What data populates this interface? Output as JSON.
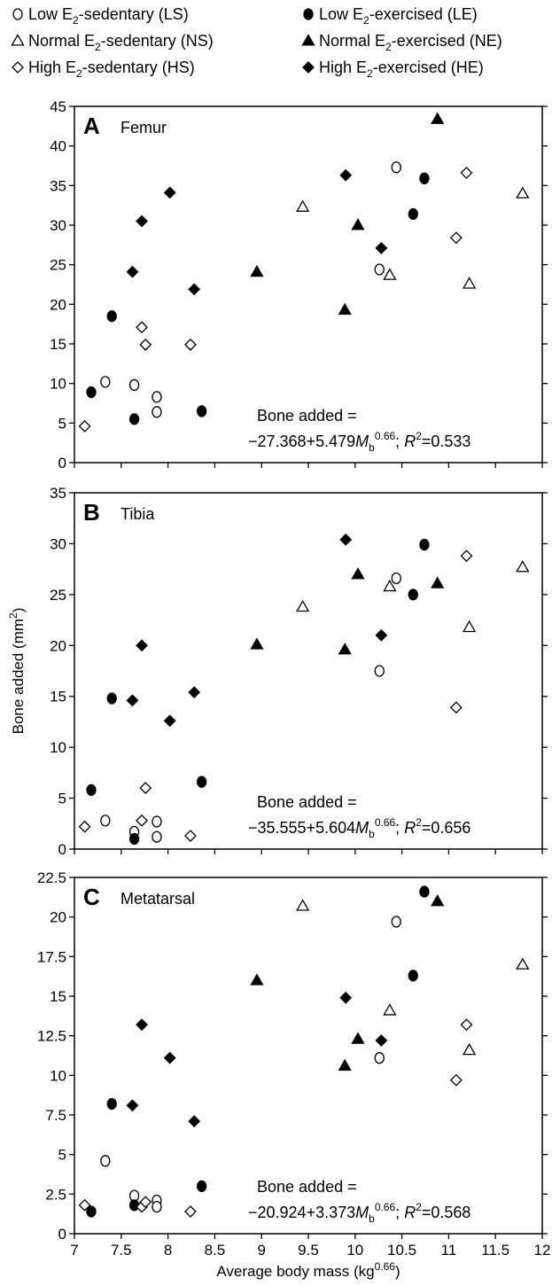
{
  "legend": {
    "entries": [
      {
        "label": "Low E",
        "sub": "2",
        "rest": "-sedentary (LS)",
        "marker": "open-circle"
      },
      {
        "label": "Low E",
        "sub": "2",
        "rest": "-exercised (LE)",
        "marker": "filled-circle"
      },
      {
        "label": "Normal E",
        "sub": "2",
        "rest": "-sedentary (NS)",
        "marker": "open-triangle"
      },
      {
        "label": "Normal E",
        "sub": "2",
        "rest": "-exercised (NE)",
        "marker": "filled-triangle"
      },
      {
        "label": "High E",
        "sub": "2",
        "rest": "-sedentary (HS)",
        "marker": "open-diamond"
      },
      {
        "label": "High E",
        "sub": "2",
        "rest": "-exercised (HE)",
        "marker": "filled-diamond"
      }
    ]
  },
  "axes": {
    "xlabel": {
      "main": "Average body mass (kg",
      "sup": "0.66",
      "end": ")"
    },
    "ylabel": {
      "main": "Bone added (mm",
      "sup": "2",
      "end": ")"
    },
    "xticks": [
      "7",
      "7.5",
      "8",
      "8.5",
      "9",
      "9.5",
      "10",
      "10.5",
      "11",
      "11.5",
      "12"
    ],
    "xlim": [
      7,
      12
    ]
  },
  "chart_data": [
    {
      "type": "scatter",
      "letter": "A",
      "title": "Femur",
      "ylim": [
        0,
        45
      ],
      "yticks": [
        "0",
        "5",
        "10",
        "15",
        "20",
        "25",
        "30",
        "35",
        "40",
        "45"
      ],
      "equation": {
        "line1": "Bone added =",
        "pre": "−27.368+5.479",
        "var": "M",
        "sub": "b",
        "sup": "0.66",
        "r_pre": "; ",
        "r_var": "R",
        "r_sup": "2",
        "r_val": "=0.533"
      },
      "series": [
        {
          "group": "LS",
          "points": [
            [
              7.33,
              10.2
            ],
            [
              7.64,
              9.8
            ],
            [
              7.88,
              8.3
            ],
            [
              7.88,
              6.4
            ],
            [
              10.26,
              24.4
            ],
            [
              10.44,
              37.3
            ]
          ]
        },
        {
          "group": "LE",
          "points": [
            [
              7.18,
              8.9
            ],
            [
              7.4,
              18.5
            ],
            [
              7.64,
              5.5
            ],
            [
              8.36,
              6.5
            ],
            [
              10.62,
              31.4
            ],
            [
              10.74,
              35.9
            ]
          ]
        },
        {
          "group": "NS",
          "points": [
            [
              9.44,
              32.3
            ],
            [
              10.37,
              23.7
            ],
            [
              11.22,
              22.6
            ],
            [
              11.79,
              34.0
            ]
          ]
        },
        {
          "group": "NE",
          "points": [
            [
              8.95,
              24.1
            ],
            [
              9.89,
              19.3
            ],
            [
              10.03,
              30.0
            ],
            [
              10.88,
              43.4
            ]
          ]
        },
        {
          "group": "HS",
          "points": [
            [
              7.11,
              4.6
            ],
            [
              7.72,
              17.1
            ],
            [
              7.76,
              14.9
            ],
            [
              8.24,
              14.9
            ],
            [
              11.08,
              28.4
            ],
            [
              11.19,
              36.6
            ]
          ]
        },
        {
          "group": "HE",
          "points": [
            [
              7.62,
              24.1
            ],
            [
              7.72,
              30.5
            ],
            [
              8.02,
              34.1
            ],
            [
              8.28,
              21.9
            ],
            [
              9.9,
              36.3
            ],
            [
              10.28,
              27.1
            ]
          ]
        }
      ]
    },
    {
      "type": "scatter",
      "letter": "B",
      "title": "Tibia",
      "ylim": [
        0,
        35
      ],
      "yticks": [
        "0",
        "5",
        "10",
        "15",
        "20",
        "25",
        "30",
        "35"
      ],
      "equation": {
        "line1": "Bone added =",
        "pre": "−35.555+5.604",
        "var": "M",
        "sub": "b",
        "sup": "0.66",
        "r_pre": "; ",
        "r_var": "R",
        "r_sup": "2",
        "r_val": "=0.656"
      },
      "series": [
        {
          "group": "LS",
          "points": [
            [
              7.33,
              2.8
            ],
            [
              7.64,
              1.7
            ],
            [
              7.88,
              2.7
            ],
            [
              7.88,
              1.2
            ],
            [
              10.26,
              17.5
            ],
            [
              10.44,
              26.6
            ]
          ]
        },
        {
          "group": "LE",
          "points": [
            [
              7.18,
              5.8
            ],
            [
              7.4,
              14.8
            ],
            [
              7.64,
              1.0
            ],
            [
              8.36,
              6.6
            ],
            [
              10.62,
              25.0
            ],
            [
              10.74,
              29.9
            ]
          ]
        },
        {
          "group": "NS",
          "points": [
            [
              9.44,
              23.8
            ],
            [
              10.37,
              25.8
            ],
            [
              11.22,
              21.8
            ],
            [
              11.79,
              27.7
            ]
          ]
        },
        {
          "group": "NE",
          "points": [
            [
              8.95,
              20.1
            ],
            [
              9.89,
              19.6
            ],
            [
              10.03,
              27.0
            ],
            [
              10.88,
              26.1
            ]
          ]
        },
        {
          "group": "HS",
          "points": [
            [
              7.11,
              2.2
            ],
            [
              7.72,
              2.8
            ],
            [
              7.76,
              6.0
            ],
            [
              8.24,
              1.3
            ],
            [
              11.08,
              13.9
            ],
            [
              11.19,
              28.8
            ]
          ]
        },
        {
          "group": "HE",
          "points": [
            [
              7.62,
              14.6
            ],
            [
              7.72,
              20.0
            ],
            [
              8.02,
              12.6
            ],
            [
              8.28,
              15.4
            ],
            [
              9.9,
              30.4
            ],
            [
              10.28,
              21.0
            ]
          ]
        }
      ]
    },
    {
      "type": "scatter",
      "letter": "C",
      "title": "Metatarsal",
      "ylim": [
        0,
        22.5
      ],
      "yticks": [
        "0",
        "2.5",
        "5",
        "7.5",
        "10",
        "12.5",
        "15",
        "17.5",
        "20",
        "22.5"
      ],
      "equation": {
        "line1": "Bone added =",
        "pre": "−20.924+3.373",
        "var": "M",
        "sub": "b",
        "sup": "0.66",
        "r_pre": "; ",
        "r_var": "R",
        "r_sup": "2",
        "r_val": "=0.568"
      },
      "series": [
        {
          "group": "LS",
          "points": [
            [
              7.33,
              4.6
            ],
            [
              7.64,
              2.4
            ],
            [
              7.88,
              2.1
            ],
            [
              7.88,
              1.7
            ],
            [
              10.26,
              11.1
            ],
            [
              10.44,
              19.7
            ]
          ]
        },
        {
          "group": "LE",
          "points": [
            [
              7.18,
              1.4
            ],
            [
              7.4,
              8.2
            ],
            [
              7.64,
              1.8
            ],
            [
              8.36,
              3.0
            ],
            [
              10.62,
              16.3
            ],
            [
              10.74,
              21.6
            ]
          ]
        },
        {
          "group": "NS",
          "points": [
            [
              9.44,
              20.7
            ],
            [
              10.37,
              14.1
            ],
            [
              11.22,
              11.6
            ],
            [
              11.79,
              17.0
            ]
          ]
        },
        {
          "group": "NE",
          "points": [
            [
              8.95,
              16.0
            ],
            [
              9.89,
              10.6
            ],
            [
              10.03,
              12.3
            ],
            [
              10.88,
              21.0
            ]
          ]
        },
        {
          "group": "HS",
          "points": [
            [
              7.11,
              1.8
            ],
            [
              7.72,
              1.7
            ],
            [
              7.76,
              2.0
            ],
            [
              8.24,
              1.4
            ],
            [
              11.08,
              9.7
            ],
            [
              11.19,
              13.2
            ]
          ]
        },
        {
          "group": "HE",
          "points": [
            [
              7.62,
              8.1
            ],
            [
              7.72,
              13.2
            ],
            [
              8.02,
              11.1
            ],
            [
              8.28,
              7.1
            ],
            [
              9.9,
              14.9
            ],
            [
              10.28,
              12.2
            ]
          ]
        }
      ]
    }
  ],
  "markers": {
    "LS": "open-circle",
    "LE": "filled-circle",
    "NS": "open-triangle",
    "NE": "filled-triangle",
    "HS": "open-diamond",
    "HE": "filled-diamond"
  }
}
